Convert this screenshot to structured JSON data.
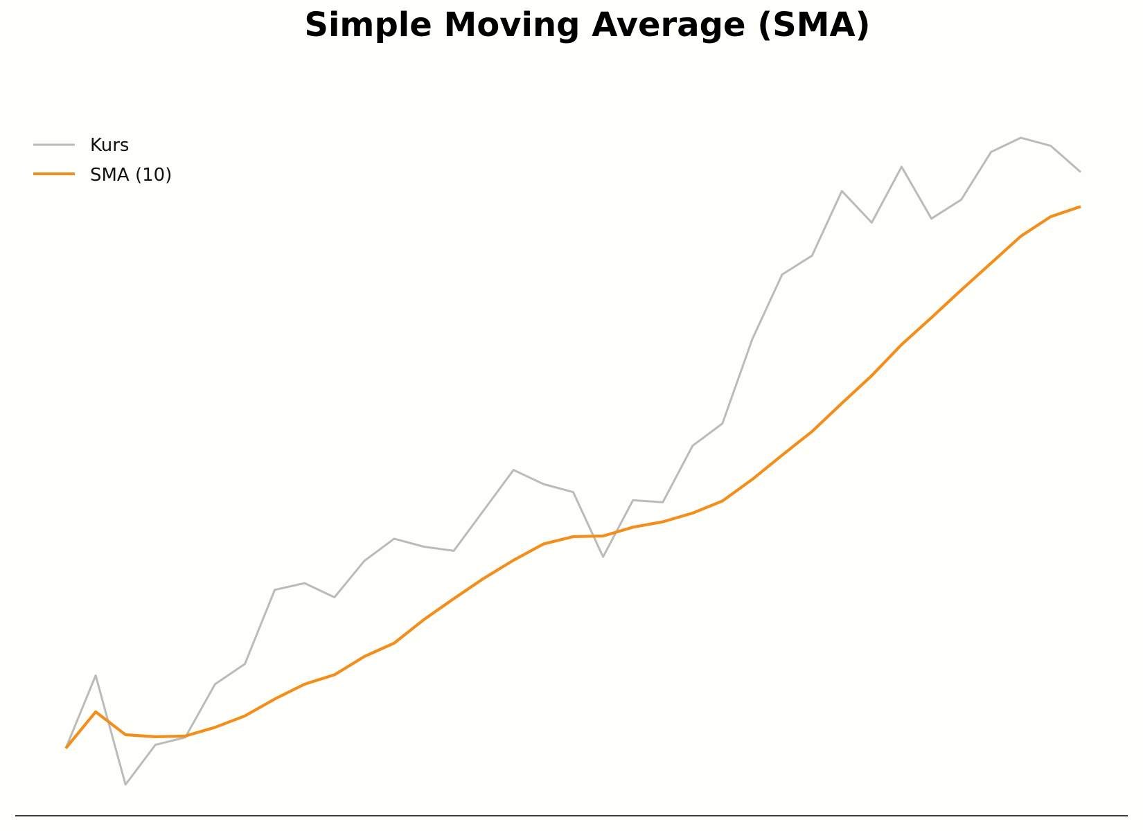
{
  "chart_data": {
    "type": "line",
    "title": "Simple Moving Average (SMA)",
    "xlabel": "",
    "ylabel": "",
    "x": [
      1,
      2,
      3,
      4,
      5,
      6,
      7,
      8,
      9,
      10,
      11,
      12,
      13,
      14,
      15,
      16,
      17,
      18,
      19,
      20,
      21,
      22,
      23,
      24,
      25,
      26,
      27,
      28,
      29,
      30,
      31,
      32,
      33,
      34,
      35
    ],
    "ylim": [
      0,
      100
    ],
    "grid": false,
    "legend": "top-left",
    "series": [
      {
        "name": "Kurs",
        "color": "#bbbbbb",
        "values": [
          5.4,
          16.2,
          0,
          5.9,
          7.0,
          14.9,
          17.9,
          28.9,
          29.9,
          27.8,
          33.2,
          36.5,
          35.3,
          34.7,
          40.7,
          46.7,
          44.6,
          43.4,
          33.8,
          42.2,
          41.9,
          50.3,
          53.6,
          66.1,
          75.7,
          78.5,
          88.1,
          83.4,
          91.7,
          84.0,
          86.8,
          93.9,
          96.0,
          94.8,
          90.9
        ]
      },
      {
        "name": "SMA (10)",
        "color": "#f28e1c",
        "values": [
          5.4,
          10.8,
          7.4,
          7.1,
          7.2,
          8.5,
          10.2,
          12.7,
          14.9,
          16.3,
          19.0,
          21.0,
          24.5,
          27.6,
          30.6,
          33.3,
          35.7,
          36.8,
          36.9,
          38.2,
          39.0,
          40.3,
          42.1,
          45.3,
          48.9,
          52.4,
          56.6,
          60.7,
          65.3,
          69.3,
          73.4,
          77.4,
          81.4,
          84.3,
          85.8
        ]
      }
    ]
  }
}
